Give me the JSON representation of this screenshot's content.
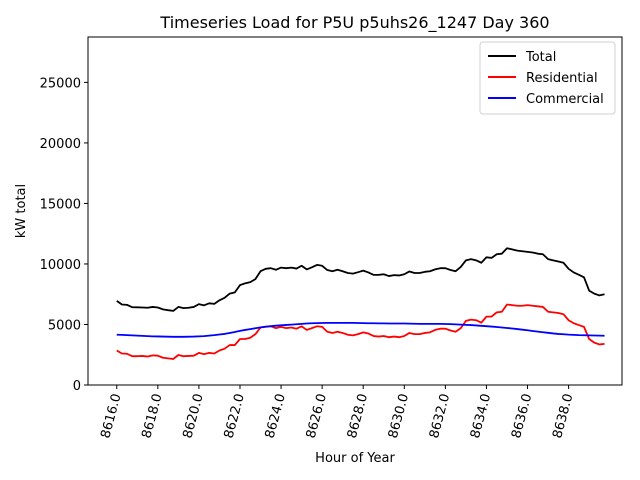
{
  "chart_data": {
    "type": "line",
    "title": "Timeseries Load for P5U p5uhs26_1247  Day 360",
    "xlabel": "Hour of Year",
    "ylabel": "kW total",
    "xlim": [
      8614.6,
      8640.6
    ],
    "ylim": [
      0,
      28750
    ],
    "xticks": [
      8616,
      8618,
      8620,
      8622,
      8624,
      8626,
      8628,
      8630,
      8632,
      8634,
      8636,
      8638
    ],
    "xtick_labels": [
      "8616.0",
      "8618.0",
      "8620.0",
      "8622.0",
      "8624.0",
      "8626.0",
      "8628.0",
      "8630.0",
      "8632.0",
      "8634.0",
      "8636.0",
      "8638.0"
    ],
    "yticks": [
      0,
      5000,
      10000,
      15000,
      20000,
      25000
    ],
    "ytick_labels": [
      "0",
      "5000",
      "10000",
      "15000",
      "20000",
      "25000"
    ],
    "legend_position": "top-right",
    "x": [
      8616.0,
      8616.25,
      8616.5,
      8616.75,
      8617.0,
      8617.25,
      8617.5,
      8617.75,
      8618.0,
      8618.25,
      8618.5,
      8618.75,
      8619.0,
      8619.25,
      8619.5,
      8619.75,
      8620.0,
      8620.25,
      8620.5,
      8620.75,
      8621.0,
      8621.25,
      8621.5,
      8621.75,
      8622.0,
      8622.25,
      8622.5,
      8622.75,
      8623.0,
      8623.25,
      8623.5,
      8623.75,
      8624.0,
      8624.25,
      8624.5,
      8624.75,
      8625.0,
      8625.25,
      8625.5,
      8625.75,
      8626.0,
      8626.25,
      8626.5,
      8626.75,
      8627.0,
      8627.25,
      8627.5,
      8627.75,
      8628.0,
      8628.25,
      8628.5,
      8628.75,
      8629.0,
      8629.25,
      8629.5,
      8629.75,
      8630.0,
      8630.25,
      8630.5,
      8630.75,
      8631.0,
      8631.25,
      8631.5,
      8631.75,
      8632.0,
      8632.25,
      8632.5,
      8632.75,
      8633.0,
      8633.25,
      8633.5,
      8633.75,
      8634.0,
      8634.25,
      8634.5,
      8634.75,
      8635.0,
      8635.25,
      8635.5,
      8635.75,
      8636.0,
      8636.25,
      8636.5,
      8636.75,
      8637.0,
      8637.25,
      8637.5,
      8637.75,
      8638.0,
      8638.25,
      8638.5,
      8638.75,
      8639.0,
      8639.25,
      8639.5,
      8639.75
    ],
    "series": [
      {
        "name": "Total",
        "color": "#000000",
        "values": [
          6950,
          6650,
          6620,
          6430,
          6420,
          6400,
          6380,
          6450,
          6400,
          6250,
          6180,
          6120,
          6450,
          6350,
          6380,
          6450,
          6680,
          6580,
          6750,
          6700,
          7000,
          7200,
          7550,
          7650,
          8250,
          8400,
          8500,
          8750,
          9400,
          9600,
          9650,
          9520,
          9700,
          9650,
          9700,
          9620,
          9850,
          9550,
          9720,
          9920,
          9850,
          9500,
          9400,
          9520,
          9400,
          9250,
          9200,
          9320,
          9450,
          9300,
          9100,
          9100,
          9150,
          9000,
          9080,
          9050,
          9150,
          9380,
          9250,
          9250,
          9350,
          9400,
          9550,
          9650,
          9650,
          9500,
          9400,
          9750,
          10300,
          10400,
          10300,
          10100,
          10550,
          10500,
          10800,
          10850,
          11300,
          11200,
          11100,
          11050,
          11000,
          10950,
          10850,
          10800,
          10400,
          10300,
          10200,
          10100,
          9600,
          9300,
          9100,
          8900,
          7800,
          7550,
          7400,
          7500
        ]
      },
      {
        "name": "Residential",
        "color": "#ff0000",
        "values": [
          2850,
          2600,
          2580,
          2380,
          2380,
          2400,
          2350,
          2450,
          2420,
          2250,
          2200,
          2150,
          2480,
          2380,
          2400,
          2420,
          2650,
          2550,
          2650,
          2600,
          2850,
          3000,
          3300,
          3300,
          3800,
          3800,
          3900,
          4200,
          4750,
          4800,
          4850,
          4700,
          4800,
          4700,
          4750,
          4650,
          4850,
          4550,
          4700,
          4850,
          4800,
          4400,
          4300,
          4400,
          4300,
          4150,
          4100,
          4200,
          4350,
          4250,
          4050,
          4000,
          4050,
          3950,
          4000,
          3950,
          4050,
          4300,
          4200,
          4200,
          4300,
          4350,
          4550,
          4650,
          4650,
          4500,
          4400,
          4700,
          5300,
          5400,
          5350,
          5150,
          5650,
          5650,
          6000,
          6050,
          6650,
          6600,
          6550,
          6550,
          6600,
          6550,
          6500,
          6450,
          6050,
          6000,
          5950,
          5850,
          5350,
          5100,
          4950,
          4800,
          3800,
          3500,
          3350,
          3400
        ]
      },
      {
        "name": "Commercial",
        "color": "#0000ff",
        "values": [
          4150,
          4140,
          4120,
          4100,
          4080,
          4060,
          4040,
          4020,
          4010,
          4000,
          3990,
          3980,
          3980,
          3980,
          3990,
          4000,
          4020,
          4040,
          4080,
          4120,
          4170,
          4220,
          4300,
          4380,
          4470,
          4550,
          4620,
          4690,
          4760,
          4820,
          4860,
          4900,
          4930,
          4960,
          4990,
          5020,
          5050,
          5080,
          5100,
          5110,
          5120,
          5130,
          5130,
          5130,
          5130,
          5130,
          5130,
          5120,
          5110,
          5100,
          5100,
          5090,
          5090,
          5080,
          5080,
          5080,
          5080,
          5070,
          5060,
          5050,
          5050,
          5050,
          5050,
          5050,
          5040,
          5030,
          5010,
          4990,
          4970,
          4950,
          4920,
          4890,
          4860,
          4830,
          4790,
          4750,
          4710,
          4670,
          4620,
          4570,
          4520,
          4460,
          4410,
          4360,
          4310,
          4260,
          4220,
          4190,
          4160,
          4140,
          4120,
          4110,
          4100,
          4090,
          4080,
          4070
        ]
      }
    ]
  }
}
